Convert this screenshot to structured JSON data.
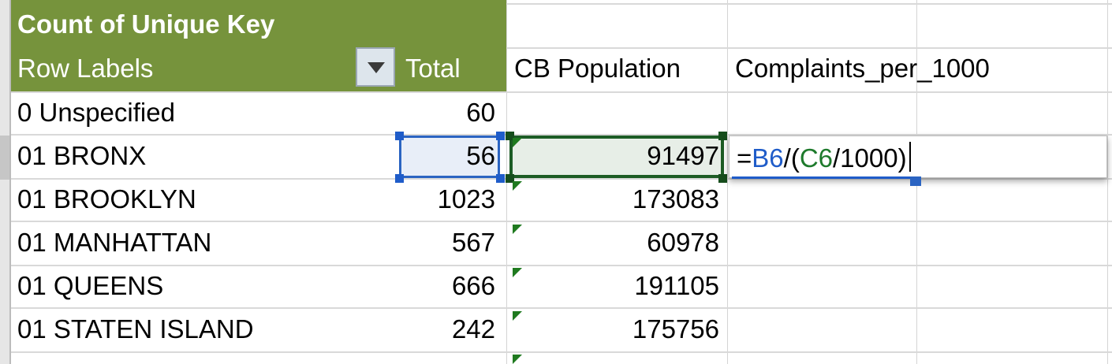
{
  "pivot": {
    "title": "Count of Unique Key",
    "row_labels_header": "Row Labels",
    "total_header": "Total"
  },
  "columns": {
    "c_header": "CB Population",
    "d_header": "Complaints_per_1000"
  },
  "rows": [
    {
      "label": "0 Unspecified",
      "total": "60",
      "population": ""
    },
    {
      "label": "01 BRONX",
      "total": "56",
      "population": "91497"
    },
    {
      "label": "01 BROOKLYN",
      "total": "1023",
      "population": "173083"
    },
    {
      "label": "01 MANHATTAN",
      "total": "567",
      "population": "60978"
    },
    {
      "label": "01 QUEENS",
      "total": "666",
      "population": "191105"
    },
    {
      "label": "01 STATEN ISLAND",
      "total": "242",
      "population": "175756"
    }
  ],
  "formula": {
    "prefix": "=",
    "ref1": "B6",
    "mid": "/(",
    "ref2": "C6",
    "suffix": "/1000)"
  },
  "colors": {
    "pivot_header": "#76933c",
    "ref_b": "#1f5cc9",
    "ref_c": "#1e7a2c"
  },
  "icons": {
    "filter": "dropdown-arrow-icon"
  }
}
